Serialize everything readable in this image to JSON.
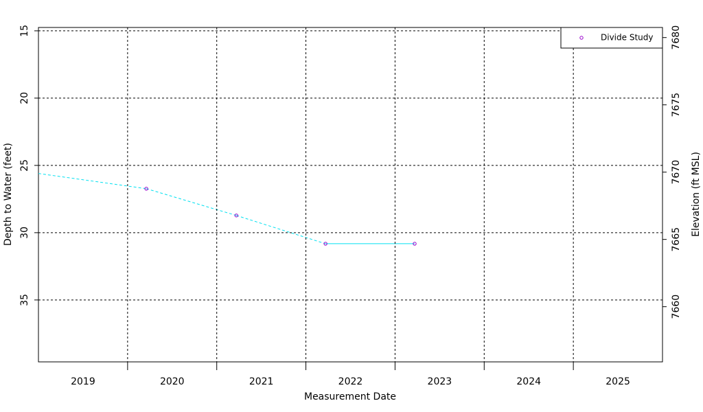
{
  "chart_data": {
    "type": "line",
    "x_label": "Measurement Date",
    "y_label": "Depth to Water (feet)",
    "y2_label": "Elevation (ft MSL)",
    "xlim": [
      2019,
      2026
    ],
    "xticks": [
      {
        "value": 2019.5,
        "label": "2019"
      },
      {
        "value": 2020.5,
        "label": "2020"
      },
      {
        "value": 2021.5,
        "label": "2021"
      },
      {
        "value": 2022.5,
        "label": "2022"
      },
      {
        "value": 2023.5,
        "label": "2023"
      },
      {
        "value": 2024.5,
        "label": "2024"
      },
      {
        "value": 2025.5,
        "label": "2025"
      }
    ],
    "xgrid": [
      2020,
      2021,
      2022,
      2023,
      2024,
      2025
    ],
    "ylim": [
      39.6,
      14.75
    ],
    "yticks": [
      15,
      20,
      25,
      30,
      35
    ],
    "y2lim": [
      7655.9,
      7680.75
    ],
    "y2ticks": [
      7660,
      7665,
      7670,
      7675,
      7680
    ],
    "grid": true,
    "legend": "top-right",
    "series": [
      {
        "name": "Divide Study",
        "color": "#9900cc",
        "line_color": "#00e0f0",
        "x": [
          2019.0,
          2020.21,
          2021.22,
          2022.22,
          2023.22
        ],
        "values": [
          25.6,
          26.73,
          28.72,
          30.82,
          30.82
        ],
        "markers": [
          false,
          true,
          true,
          true,
          true
        ],
        "segment_styles": [
          "dashed",
          "dashed",
          "dashed",
          "solid"
        ]
      }
    ]
  }
}
